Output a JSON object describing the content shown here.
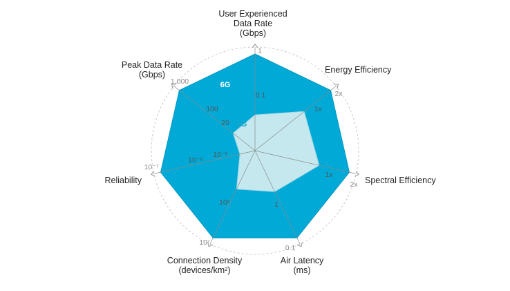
{
  "chart_data": {
    "type": "radar",
    "title": "",
    "axes": [
      {
        "name": "user-experienced-data-rate",
        "label_lines": [
          "User Experienced",
          "Data Rate",
          "(Gbps)"
        ],
        "outer_tick": "1",
        "inner_ticks": [
          {
            "text": "0.1"
          }
        ]
      },
      {
        "name": "energy-efficiency",
        "label_lines": [
          "Energy Efficiency"
        ],
        "outer_tick": "2x",
        "inner_ticks": [
          {
            "text": "1x"
          }
        ]
      },
      {
        "name": "spectral-efficiency",
        "label_lines": [
          "Spectral Efficiency"
        ],
        "outer_tick": "2x",
        "inner_ticks": [
          {
            "text": "1x"
          }
        ]
      },
      {
        "name": "air-latency",
        "label_lines": [
          "Air Latency",
          "(ms)"
        ],
        "outer_tick": "0.1",
        "inner_ticks": [
          {
            "text": "1"
          }
        ]
      },
      {
        "name": "connection-density",
        "label_lines": [
          "Connection Density",
          "(devices/km²)"
        ],
        "outer_tick": "10⁷",
        "inner_ticks": [
          {
            "text": "10⁶"
          }
        ]
      },
      {
        "name": "reliability",
        "label_lines": [
          "Reliability"
        ],
        "outer_tick": "10⁻⁷",
        "inner_ticks": [
          {
            "text": "10⁻⁶"
          },
          {
            "text": "10⁻⁵"
          }
        ]
      },
      {
        "name": "peak-data-rate",
        "label_lines": [
          "Peak Data Rate",
          "(Gbps)"
        ],
        "outer_tick": "1,000",
        "inner_ticks": [
          {
            "text": "100"
          },
          {
            "text": "20"
          }
        ]
      }
    ],
    "series": [
      {
        "name": "6G",
        "color": "#00a9d6",
        "values": [
          1.0,
          1.0,
          1.0,
          1.0,
          1.0,
          1.0,
          1.0
        ]
      },
      {
        "name": "5G",
        "color": "#c5e8ef",
        "values": [
          0.37,
          0.65,
          0.68,
          0.47,
          0.44,
          0.16,
          0.29
        ]
      }
    ],
    "series_label_colors": {
      "6G": "#ffffff",
      "5G": "#1aa5c8"
    },
    "grid": "dashed concentric circles"
  }
}
